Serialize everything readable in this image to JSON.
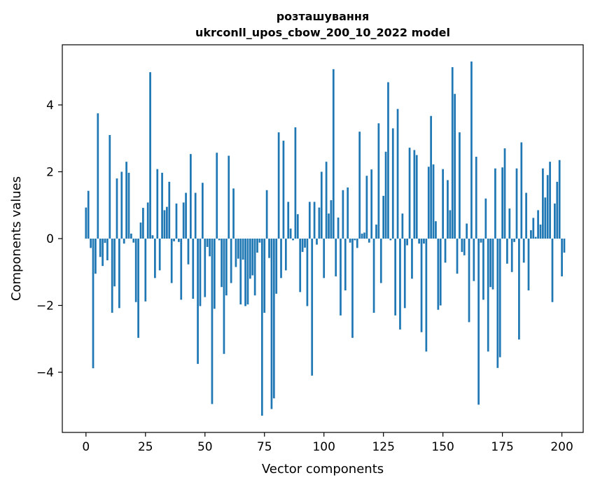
{
  "chart_data": {
    "type": "bar",
    "title": "розташування",
    "subtitle": "ukrconll_upos_cbow_200_10_2022 model",
    "xlabel": "Vector components",
    "ylabel": "Components values",
    "xlim": [
      -9.95,
      208.95
    ],
    "ylim": [
      -5.8,
      5.8
    ],
    "xticks": [
      0,
      25,
      50,
      75,
      100,
      125,
      150,
      175,
      200
    ],
    "yticks": [
      -4,
      -2,
      0,
      2,
      4
    ],
    "xtick_labels": [
      "0",
      "25",
      "50",
      "75",
      "100",
      "125",
      "150",
      "175",
      "200"
    ],
    "ytick_labels": [
      "−4",
      "−2",
      "0",
      "2",
      "4"
    ],
    "bar_color": "#1f77b4",
    "grid": false,
    "values": [
      0.93,
      1.43,
      -0.28,
      -3.88,
      -1.05,
      3.75,
      -0.55,
      -0.82,
      -0.13,
      -0.65,
      3.1,
      -2.22,
      -1.43,
      1.8,
      -2.08,
      2.0,
      -0.15,
      2.3,
      1.97,
      0.15,
      -0.12,
      -1.9,
      -2.97,
      0.48,
      0.92,
      -1.88,
      1.08,
      4.98,
      0.1,
      -1.18,
      2.08,
      -0.95,
      1.97,
      0.85,
      0.95,
      1.7,
      -1.33,
      -0.08,
      1.05,
      -0.1,
      -1.83,
      1.08,
      1.37,
      -0.77,
      2.53,
      -1.8,
      1.37,
      -3.75,
      -2.02,
      1.67,
      -1.75,
      -0.25,
      -0.53,
      -4.95,
      -2.1,
      2.57,
      -0.05,
      -1.45,
      -3.45,
      -1.7,
      2.48,
      -1.33,
      1.5,
      -0.85,
      -0.6,
      -1.97,
      -0.63,
      -2.02,
      -1.97,
      -1.2,
      -1.1,
      -1.7,
      -0.42,
      -0.12,
      -5.3,
      -2.22,
      1.45,
      -0.58,
      -5.1,
      -4.78,
      -1.65,
      3.18,
      -1.18,
      2.93,
      -0.95,
      1.1,
      0.3,
      -0.05,
      3.33,
      0.73,
      -1.6,
      -0.4,
      -0.27,
      -2.02,
      1.1,
      -4.1,
      1.1,
      -0.18,
      0.93,
      2.0,
      -1.18,
      2.3,
      0.75,
      1.15,
      5.07,
      -1.13,
      0.63,
      -2.3,
      1.45,
      -1.55,
      1.53,
      -0.12,
      -2.97,
      -0.05,
      -0.28,
      3.2,
      0.15,
      0.18,
      1.88,
      -0.12,
      2.07,
      -2.22,
      0.42,
      3.45,
      -1.33,
      1.28,
      2.6,
      4.68,
      -0.05,
      3.3,
      -2.3,
      3.88,
      -2.72,
      0.75,
      -2.08,
      -0.2,
      2.72,
      -1.2,
      2.65,
      2.5,
      -0.15,
      -2.8,
      -0.15,
      -3.38,
      2.15,
      3.67,
      2.22,
      0.52,
      -2.13,
      -2.0,
      2.08,
      -0.72,
      1.75,
      0.85,
      5.13,
      4.33,
      -1.05,
      3.18,
      -0.4,
      -0.5,
      0.45,
      -2.5,
      5.3,
      -1.27,
      2.45,
      -4.97,
      -0.12,
      -1.83,
      1.2,
      -3.38,
      -1.45,
      -1.52,
      2.1,
      -3.87,
      -3.55,
      2.13,
      2.7,
      -0.75,
      0.9,
      -1.0,
      -0.1,
      2.1,
      -3.02,
      2.88,
      -0.72,
      1.37,
      -1.55,
      0.25,
      0.62,
      0.05,
      0.85,
      0.42,
      2.1,
      1.23,
      1.9,
      2.3,
      -1.9,
      1.05,
      1.7,
      2.35,
      -1.13,
      -0.42
    ]
  }
}
